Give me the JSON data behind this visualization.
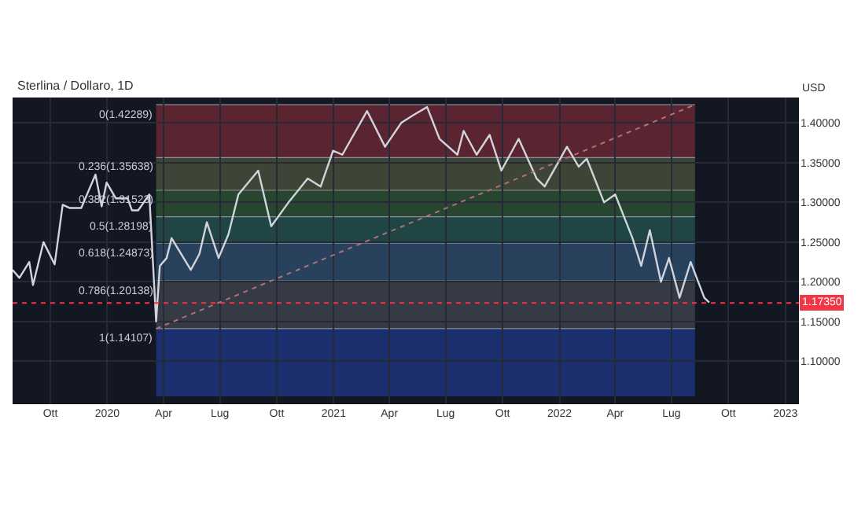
{
  "chart_data": {
    "type": "line",
    "title": "Sterlina / Dollaro, 1D",
    "x": [
      "2019-08-01",
      "2019-08-12",
      "2019-08-28",
      "2019-09-03",
      "2019-09-20",
      "2019-10-08",
      "2019-10-21",
      "2019-11-01",
      "2019-11-20",
      "2019-12-13",
      "2019-12-23",
      "2019-12-31",
      "2020-01-15",
      "2020-02-03",
      "2020-02-10",
      "2020-02-20",
      "2020-03-09",
      "2020-03-20",
      "2020-03-26",
      "2020-04-06",
      "2020-04-14",
      "2020-05-15",
      "2020-05-29",
      "2020-06-10",
      "2020-06-29",
      "2020-07-15",
      "2020-07-31",
      "2020-09-01",
      "2020-09-22",
      "2020-10-20",
      "2020-11-20",
      "2020-12-11",
      "2020-12-31",
      "2021-01-15",
      "2021-02-24",
      "2021-03-25",
      "2021-04-20",
      "2021-05-10",
      "2021-06-01",
      "2021-06-21",
      "2021-07-20",
      "2021-07-30",
      "2021-08-20",
      "2021-09-10",
      "2021-09-29",
      "2021-10-27",
      "2021-11-25",
      "2021-12-08",
      "2022-01-13",
      "2022-02-01",
      "2022-02-14",
      "2022-03-14",
      "2022-04-01",
      "2022-04-29",
      "2022-05-13",
      "2022-05-27",
      "2022-06-14",
      "2022-06-27",
      "2022-07-14",
      "2022-08-01",
      "2022-08-23",
      "2022-08-31"
    ],
    "series": [
      {
        "color": "#d1d4dc",
        "values": [
          1.215,
          1.205,
          1.225,
          1.196,
          1.25,
          1.222,
          1.297,
          1.293,
          1.293,
          1.335,
          1.295,
          1.325,
          1.305,
          1.305,
          1.29,
          1.29,
          1.31,
          1.15,
          1.22,
          1.23,
          1.255,
          1.215,
          1.235,
          1.275,
          1.23,
          1.26,
          1.31,
          1.34,
          1.27,
          1.3,
          1.33,
          1.32,
          1.365,
          1.36,
          1.415,
          1.37,
          1.4,
          1.41,
          1.42,
          1.38,
          1.36,
          1.39,
          1.36,
          1.385,
          1.34,
          1.38,
          1.33,
          1.32,
          1.37,
          1.345,
          1.355,
          1.3,
          1.31,
          1.255,
          1.22,
          1.265,
          1.2,
          1.23,
          1.18,
          1.225,
          1.18,
          1.174
        ]
      },
      {
        "type": "line",
        "color": "#b0707a",
        "line_style": "dotted",
        "x": [
          "2020-03-20",
          "2022-08-08"
        ],
        "values": [
          1.141,
          1.423
        ]
      }
    ],
    "xlim": [
      "2019-08-01",
      "2023-01-23"
    ],
    "xticks": [
      {
        "value": "2019-10-01",
        "label": "Ott"
      },
      {
        "value": "2020-01-01",
        "label": "2020"
      },
      {
        "value": "2020-04-01",
        "label": "Apr"
      },
      {
        "value": "2020-07-01",
        "label": "Lug"
      },
      {
        "value": "2020-10-01",
        "label": "Ott"
      },
      {
        "value": "2021-01-01",
        "label": "2021"
      },
      {
        "value": "2021-04-01",
        "label": "Apr"
      },
      {
        "value": "2021-07-01",
        "label": "Lug"
      },
      {
        "value": "2021-10-01",
        "label": "Ott"
      },
      {
        "value": "2022-01-01",
        "label": "2022"
      },
      {
        "value": "2022-04-01",
        "label": "Apr"
      },
      {
        "value": "2022-07-01",
        "label": "Lug"
      },
      {
        "value": "2022-10-01",
        "label": "Ott"
      },
      {
        "value": "2023-01-01",
        "label": "2023"
      }
    ],
    "ylim": [
      1.046,
      1.432
    ],
    "yticks": [
      {
        "value": 1.1,
        "label": "1.10000"
      },
      {
        "value": 1.15,
        "label": "1.15000"
      },
      {
        "value": 1.2,
        "label": "1.20000"
      },
      {
        "value": 1.25,
        "label": "1.25000"
      },
      {
        "value": 1.3,
        "label": "1.30000"
      },
      {
        "value": 1.35,
        "label": "1.35000"
      },
      {
        "value": 1.4,
        "label": "1.40000"
      }
    ],
    "ylabel": "USD",
    "bands": [
      {
        "axis": "y",
        "from": 1.42289,
        "to": 1.35638,
        "label": "0(1.42289)",
        "color": "#5a2431"
      },
      {
        "axis": "y",
        "from": 1.35638,
        "to": 1.31523,
        "label": "0.236(1.35638)",
        "color": "#3c4536"
      },
      {
        "axis": "y",
        "from": 1.31523,
        "to": 1.28198,
        "label": "0.382(1.31523)",
        "color": "#27452f"
      },
      {
        "axis": "y",
        "from": 1.28198,
        "to": 1.24873,
        "label": "0.5(1.28198)",
        "color": "#1f4544"
      },
      {
        "axis": "y",
        "from": 1.24873,
        "to": 1.20138,
        "label": "0.618(1.24873)",
        "color": "#28425e"
      },
      {
        "axis": "y",
        "from": 1.20138,
        "to": 1.14107,
        "label": "0.786(1.20138)",
        "color": "#363a44"
      },
      {
        "axis": "y",
        "from": 1.14107,
        "to": 1.056,
        "label": "1(1.14107)",
        "color": "#1b2f6e"
      }
    ],
    "ref_lines": [
      {
        "axis": "y",
        "value": 1.1735,
        "label": "1.17350",
        "color": "#f23645",
        "line_style": "dotted"
      }
    ],
    "grid": true
  }
}
